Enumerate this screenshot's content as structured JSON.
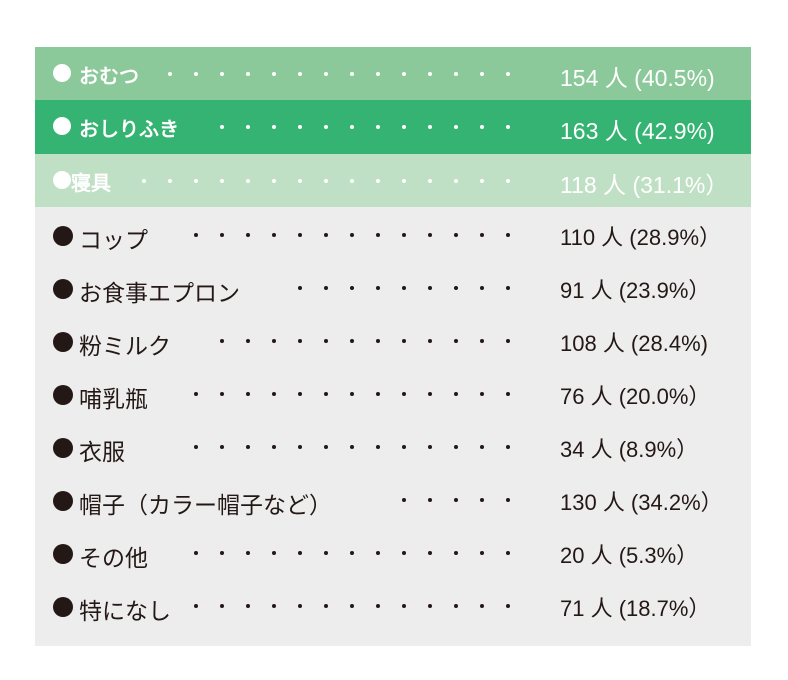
{
  "colors": {
    "panel_bg": "#ededed",
    "header_row_1": "#8cc99a",
    "header_row_2": "#35b372",
    "header_row_3": "#c0e0c5",
    "text_dark": "#231815",
    "text_light": "#ffffff"
  },
  "bullet_glyph": "●",
  "highlighted": [
    {
      "label": "おむつ",
      "value": "154 人 (40.5%)",
      "count": 154,
      "percent": 40.5
    },
    {
      "label": "おしりふき",
      "value": "163 人 (42.9%)",
      "count": 163,
      "percent": 42.9
    },
    {
      "label": "寝具",
      "value": "118 人 (31.1%）",
      "count": 118,
      "percent": 31.1
    }
  ],
  "items": [
    {
      "label": "コップ",
      "value": "110 人 (28.9%）",
      "count": 110,
      "percent": 28.9
    },
    {
      "label": "お食事エプロン",
      "value": "91 人 (23.9%）",
      "count": 91,
      "percent": 23.9
    },
    {
      "label": "粉ミルク",
      "value": "108 人 (28.4%)",
      "count": 108,
      "percent": 28.4
    },
    {
      "label": "哺乳瓶",
      "value": "76 人 (20.0%）",
      "count": 76,
      "percent": 20.0
    },
    {
      "label": "衣服",
      "value": "34 人 (8.9%）",
      "count": 34,
      "percent": 8.9
    },
    {
      "label": "帽子（カラー帽子など）",
      "value": "130 人 (34.2%）",
      "count": 130,
      "percent": 34.2
    },
    {
      "label": "その他",
      "value": "20 人 (5.3%）",
      "count": 20,
      "percent": 5.3
    },
    {
      "label": "特になし",
      "value": "71 人 (18.7%）",
      "count": 71,
      "percent": 18.7
    }
  ]
}
